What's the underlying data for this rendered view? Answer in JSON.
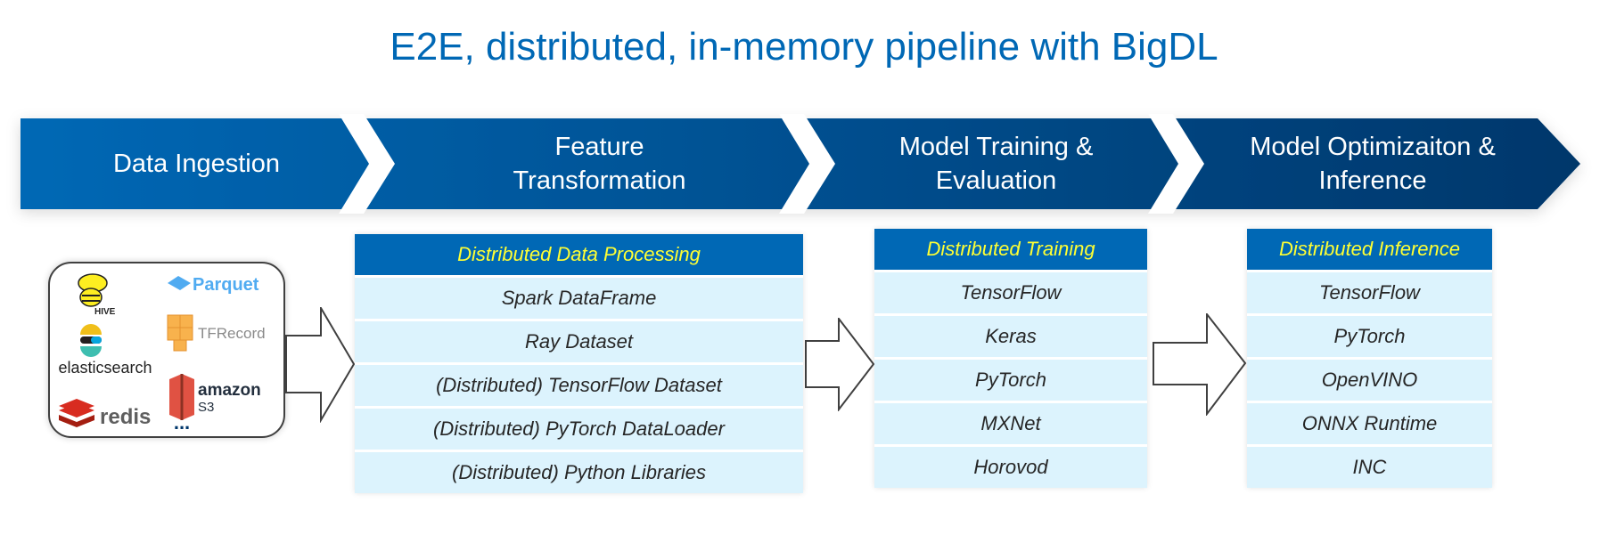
{
  "title": "E2E, distributed, in-memory pipeline with BigDL",
  "stages": [
    {
      "label_lines": [
        "Data Ingestion"
      ]
    },
    {
      "label_lines": [
        "Feature",
        "Transformation"
      ]
    },
    {
      "label_lines": [
        "Model Training &",
        "Evaluation"
      ]
    },
    {
      "label_lines": [
        "Model Optimizaiton &",
        "Inference"
      ]
    }
  ],
  "data_sources": {
    "logos": [
      "HIVE",
      "Parquet",
      "elasticsearch",
      "TFRecord",
      "redis",
      "amazon S3"
    ],
    "hive": "HIVE",
    "parquet": "Parquet",
    "elasticsearch": "elasticsearch",
    "tfrecord": "TFRecord",
    "redis": "redis",
    "amazon": "amazon",
    "s3": "S3",
    "more": "..."
  },
  "tables": [
    {
      "header": "Distributed Data Processing",
      "rows": [
        "Spark DataFrame",
        "Ray Dataset",
        "(Distributed) TensorFlow Dataset",
        "(Distributed) PyTorch DataLoader",
        "(Distributed) Python Libraries"
      ]
    },
    {
      "header": "Distributed Training",
      "rows": [
        "TensorFlow",
        "Keras",
        "PyTorch",
        "MXNet",
        "Horovod"
      ]
    },
    {
      "header": "Distributed Inference",
      "rows": [
        "TensorFlow",
        "PyTorch",
        "OpenVINO",
        "ONNX Runtime",
        "INC"
      ]
    }
  ],
  "colors": {
    "title": "#0068b5",
    "banner_start": "#0068b5",
    "banner_end": "#00376b",
    "table_header": "#0068b5",
    "table_header_text": "#ffff33",
    "table_row": "#dcf3fd"
  }
}
